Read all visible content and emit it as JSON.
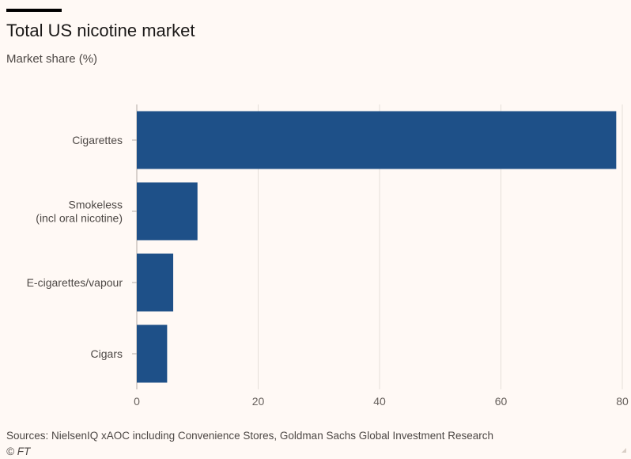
{
  "header": {
    "title": "Total US nicotine market",
    "subtitle": "Market share (%)"
  },
  "footer": {
    "source": "Sources: NielsenIQ xAOC including Convenience Stores, Goldman Sachs Global Investment Research",
    "credit": "© FT"
  },
  "colors": {
    "bar": "#1e5088",
    "grid": "#e6dfd9",
    "background": "#fff9f5"
  },
  "chart_data": {
    "type": "bar",
    "orientation": "horizontal",
    "title": "Total US nicotine market",
    "subtitle": "Market share (%)",
    "categories": [
      [
        "Cigarettes"
      ],
      [
        "Smokeless",
        "(incl oral nicotine)"
      ],
      [
        "E-cigarettes/vapour"
      ],
      [
        "Cigars"
      ]
    ],
    "values": [
      79,
      10,
      6,
      5
    ],
    "xlim": [
      0,
      80
    ],
    "xticks": [
      0,
      20,
      40,
      60,
      80
    ],
    "grid": true
  }
}
